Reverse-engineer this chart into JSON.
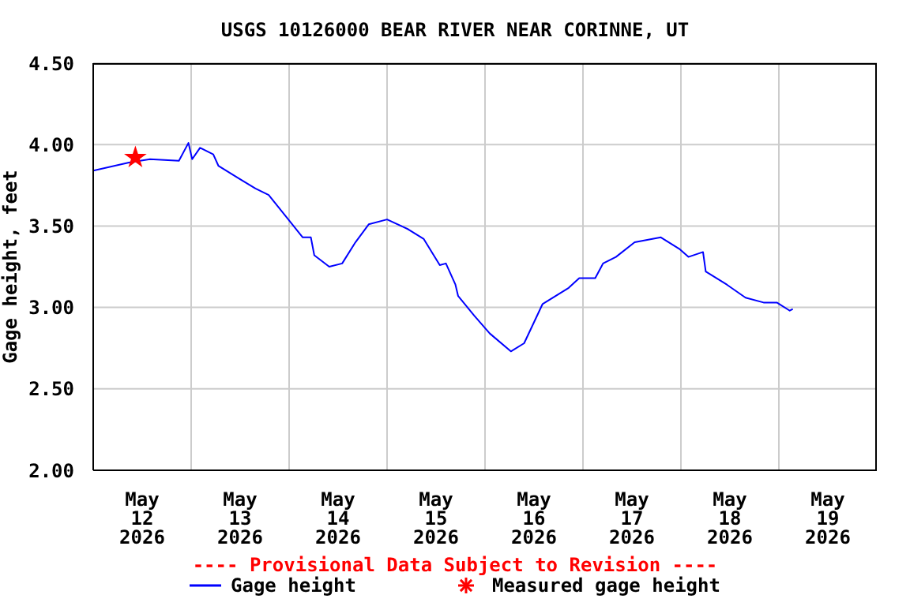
{
  "chart_data": {
    "type": "line",
    "title": "USGS 10126000 BEAR RIVER NEAR CORINNE, UT",
    "ylabel": "Gage height, feet",
    "annotations": [
      "---- Provisional Data Subject to Revision ----"
    ],
    "xlim": [
      "2026-05-12T00:00",
      "2026-05-20T00:00"
    ],
    "xticks": [
      {
        "value": "2026-05-12T12:00",
        "label": "May\n12\n2026"
      },
      {
        "value": "2026-05-13T00:00",
        "label": null
      },
      {
        "value": "2026-05-13T12:00",
        "label": "May\n13\n2026"
      },
      {
        "value": "2026-05-14T00:00",
        "label": null
      },
      {
        "value": "2026-05-14T12:00",
        "label": "May\n14\n2026"
      },
      {
        "value": "2026-05-15T00:00",
        "label": null
      },
      {
        "value": "2026-05-15T12:00",
        "label": "May\n15\n2026"
      },
      {
        "value": "2026-05-16T00:00",
        "label": null
      },
      {
        "value": "2026-05-16T12:00",
        "label": "May\n16\n2026"
      },
      {
        "value": "2026-05-17T00:00",
        "label": null
      },
      {
        "value": "2026-05-17T12:00",
        "label": "May\n17\n2026"
      },
      {
        "value": "2026-05-18T00:00",
        "label": null
      },
      {
        "value": "2026-05-18T12:00",
        "label": "May\n18\n2026"
      },
      {
        "value": "2026-05-19T00:00",
        "label": null
      },
      {
        "value": "2026-05-19T12:00",
        "label": "May\n19\n2026"
      }
    ],
    "ylim": [
      2.0,
      4.5
    ],
    "yticks": [
      {
        "value": 2.0,
        "label": "2.00"
      },
      {
        "value": 2.5,
        "label": "2.50"
      },
      {
        "value": 3.0,
        "label": "3.00"
      },
      {
        "value": 3.5,
        "label": "3.50"
      },
      {
        "value": 4.0,
        "label": "4.00"
      },
      {
        "value": 4.5,
        "label": "4.50"
      }
    ],
    "grid": true,
    "legend": "bottom",
    "series": [
      {
        "name": "Gage height",
        "type": "line",
        "color": "#0000ff",
        "marker": "none",
        "x": [
          "2026-05-12T00:00",
          "2026-05-12T08:45",
          "2026-05-12T13:55",
          "2026-05-12T21:00",
          "2026-05-12T23:20",
          "2026-05-13T00:15",
          "2026-05-13T02:10",
          "2026-05-13T05:25",
          "2026-05-13T06:40",
          "2026-05-13T11:50",
          "2026-05-13T15:45",
          "2026-05-13T19:00",
          "2026-05-13T23:30",
          "2026-05-14T03:20",
          "2026-05-14T05:20",
          "2026-05-14T06:10",
          "2026-05-14T09:50",
          "2026-05-14T13:00",
          "2026-05-14T16:15",
          "2026-05-14T19:30",
          "2026-05-15T00:00",
          "2026-05-15T05:10",
          "2026-05-15T09:00",
          "2026-05-15T12:55",
          "2026-05-15T14:25",
          "2026-05-15T16:45",
          "2026-05-15T17:25",
          "2026-05-15T21:20",
          "2026-05-16T01:10",
          "2026-05-16T06:20",
          "2026-05-16T09:35",
          "2026-05-16T14:05",
          "2026-05-16T20:30",
          "2026-05-16T23:05",
          "2026-05-17T03:00",
          "2026-05-17T04:55",
          "2026-05-17T08:05",
          "2026-05-17T12:40",
          "2026-05-17T19:05",
          "2026-05-17T23:35",
          "2026-05-18T01:50",
          "2026-05-18T05:25",
          "2026-05-18T06:05",
          "2026-05-18T11:15",
          "2026-05-18T15:50",
          "2026-05-18T20:15",
          "2026-05-18T23:30",
          "2026-05-19T02:40",
          "2026-05-19T03:25"
        ],
        "values": [
          3.84,
          3.89,
          3.91,
          3.9,
          4.01,
          3.91,
          3.98,
          3.94,
          3.87,
          3.79,
          3.73,
          3.69,
          3.55,
          3.43,
          3.43,
          3.32,
          3.25,
          3.27,
          3.4,
          3.51,
          3.54,
          3.48,
          3.42,
          3.26,
          3.27,
          3.14,
          3.07,
          2.95,
          2.84,
          2.73,
          2.78,
          3.02,
          3.12,
          3.18,
          3.18,
          3.27,
          3.31,
          3.4,
          3.43,
          3.36,
          3.31,
          3.34,
          3.22,
          3.14,
          3.06,
          3.03,
          3.03,
          2.98,
          2.99
        ]
      },
      {
        "name": "Measured gage height",
        "type": "scatter",
        "color": "#ff0000",
        "marker": "star",
        "x": [
          "2026-05-12T10:20"
        ],
        "values": [
          3.92
        ]
      }
    ]
  }
}
